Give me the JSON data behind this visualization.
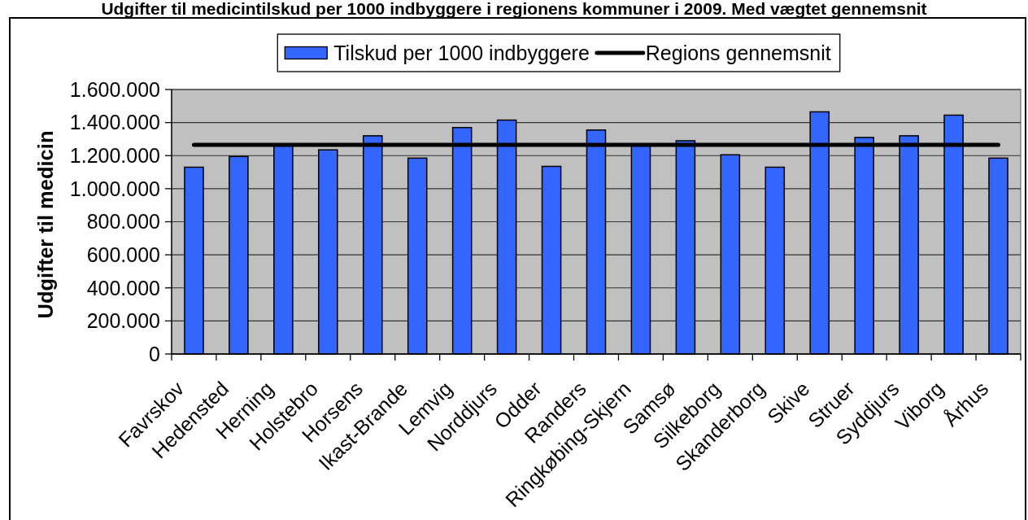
{
  "chart_data": {
    "type": "bar",
    "title": "Udgifter til medicintilskud per 1000 indbyggere i regionens kommuner i 2009. Med vægtet gennemsnit",
    "ylabel": "Udgifter til medicin",
    "categories": [
      "Favrskov",
      "Hedensted",
      "Herning",
      "Holstebro",
      "Horsens",
      "Ikast-Brande",
      "Lemvig",
      "Norddjurs",
      "Odder",
      "Randers",
      "Ringkøbing-Skjern",
      "Samsø",
      "Silkeborg",
      "Skanderborg",
      "Skive",
      "Struer",
      "Syddjurs",
      "Viborg",
      "Århus"
    ],
    "series": [
      {
        "name": "Tilskud per 1000 indbyggere",
        "color": "#3366ff",
        "values": [
          1130000,
          1195000,
          1260000,
          1235000,
          1320000,
          1185000,
          1370000,
          1415000,
          1135000,
          1355000,
          1260000,
          1290000,
          1205000,
          1130000,
          1465000,
          1310000,
          1320000,
          1445000,
          1185000
        ]
      },
      {
        "name": "Regions gennemsnit",
        "type": "line",
        "color": "#000000",
        "values": [
          1265000,
          1265000,
          1265000,
          1265000,
          1265000,
          1265000,
          1265000,
          1265000,
          1265000,
          1265000,
          1265000,
          1265000,
          1265000,
          1265000,
          1265000,
          1265000,
          1265000,
          1265000,
          1265000
        ]
      }
    ],
    "ylim": [
      0,
      1600000
    ],
    "yticks": [
      0,
      {
        "value": 200000,
        "label": "200.000"
      },
      {
        "value": 400000,
        "label": "400.000"
      },
      {
        "value": 600000,
        "label": "600.000"
      },
      {
        "value": 800000,
        "label": "800.000"
      },
      {
        "value": 1000000,
        "label": "1.000.000"
      },
      {
        "value": 1200000,
        "label": "1.200.000"
      },
      {
        "value": 1400000,
        "label": "1.400.000"
      },
      {
        "value": 1600000,
        "label": "1.600.000"
      }
    ],
    "grid": "y",
    "legend": "top"
  }
}
